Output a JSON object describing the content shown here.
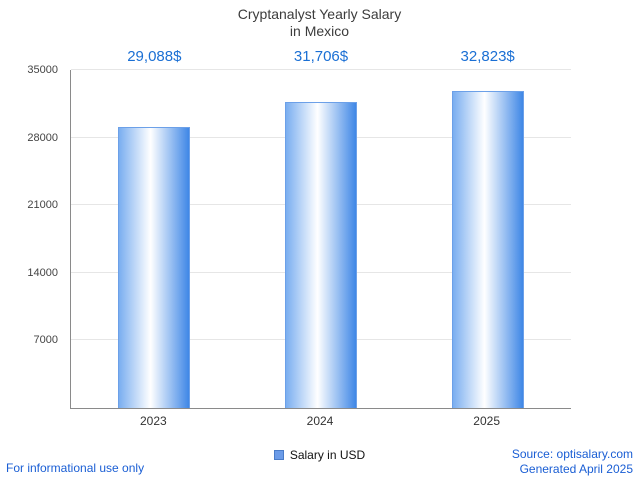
{
  "title": {
    "line1": "Cryptanalyst Yearly Salary",
    "line2": "in Mexico"
  },
  "chart_data": {
    "type": "bar",
    "categories": [
      "2023",
      "2024",
      "2025"
    ],
    "values": [
      29088,
      31706,
      32823
    ],
    "value_labels": [
      "29,088$",
      "31,706$",
      "32,823$"
    ],
    "title": "Cryptanalyst Yearly Salary in Mexico",
    "xlabel": "",
    "ylabel": "",
    "ylim": [
      0,
      35000
    ],
    "yticks": [
      7000,
      14000,
      21000,
      28000,
      35000
    ],
    "grid": true,
    "legend": [
      {
        "label": "Salary in USD",
        "color": "#6b9be8"
      }
    ],
    "legend_position": "bottom",
    "bar_gradient": [
      "#7aaef0",
      "#ffffff",
      "#3f87e6"
    ],
    "value_label_color": "#1a6fd4"
  },
  "legend": {
    "label": "Salary in USD"
  },
  "footer": {
    "left": "For informational use only",
    "source": "Source: optisalary.com",
    "generated": "Generated April 2025"
  }
}
